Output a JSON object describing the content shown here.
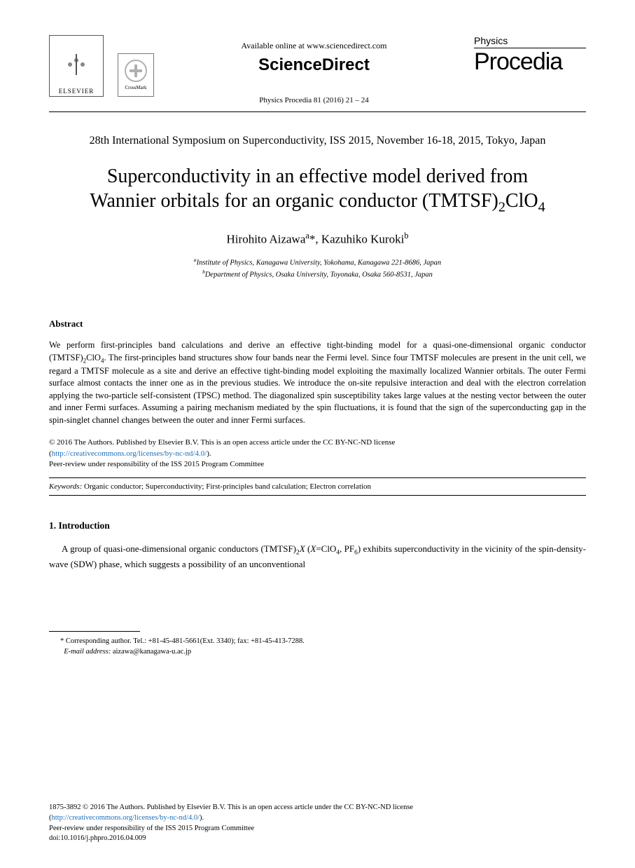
{
  "header": {
    "elsevier_label": "ELSEVIER",
    "crossmark_label": "CrossMark",
    "available_text": "Available online at www.sciencedirect.com",
    "sciencedirect": "ScienceDirect",
    "journal_ref": "Physics Procedia 81 (2016) 21 – 24",
    "physics_label": "Physics",
    "procedia_label": "Procedia"
  },
  "conference": "28th International Symposium on Superconductivity, ISS 2015, November 16-18, 2015, Tokyo, Japan",
  "title_line1": "Superconductivity in an effective model derived from",
  "title_line2_pre": "Wannier orbitals for an organic conductor (TMTSF)",
  "title_line2_sub1": "2",
  "title_line2_mid": "ClO",
  "title_line2_sub2": "4",
  "authors": {
    "a1_name": "Hirohito Aizawa",
    "a1_sup": "a",
    "a1_mark": "*",
    "sep": ", ",
    "a2_name": "Kazuhiko Kuroki",
    "a2_sup": "b"
  },
  "affiliations": {
    "a_sup": "a",
    "a_text": "Institute of Physics, Kanagawa University, Yokohama, Kanagawa 221-8686, Japan",
    "b_sup": "b",
    "b_text": "Department of Physics, Osaka University, Toyonaka, Osaka 560-8531, Japan"
  },
  "abstract": {
    "heading": "Abstract",
    "p1a": "We perform first-principles band calculations and derive an effective tight-binding model for a quasi-one-dimensional organic conductor (TMTSF)",
    "p1b": "ClO",
    "p1c": ". The first-principles band structures show four bands near the Fermi level. Since four TMTSF molecules are present in the unit cell, we regard a TMTSF molecule as a site and derive an effective tight-binding model exploiting the maximally localized Wannier orbitals. The outer Fermi surface almost contacts the inner one as in the previous studies. We introduce the on-site repulsive interaction and deal with the electron correlation applying the two-particle self-consistent (TPSC) method. The diagonalized spin susceptibility takes large values at the nesting vector between the outer and inner Fermi surfaces. Assuming a pairing mechanism mediated by the spin fluctuations, it is found that the sign of the superconducting gap in the spin-singlet channel changes between the outer and inner Fermi surfaces."
  },
  "copyright": {
    "line1": "© 2016 The Authors. Published by Elsevier B.V. This is an open access article under the CC BY-NC-ND license",
    "link": "http://creativecommons.org/licenses/by-nc-nd/4.0/",
    "line3": "Peer-review under responsibility of the ISS 2015 Program Committee"
  },
  "keywords": {
    "label": "Keywords:",
    "text": " Organic conductor; Superconductivity; First-principles band calculation; Electron correlation"
  },
  "intro": {
    "heading": "1. Introduction",
    "p_a": "A group of quasi-one-dimensional organic conductors (TMTSF)",
    "p_sub1": "2",
    "p_b": "X",
    "p_c": " (",
    "p_d": "X",
    "p_e": "=ClO",
    "p_sub2": "4",
    "p_f": ", PF",
    "p_sub3": "6",
    "p_g": ") exhibits superconductivity in the vicinity of the spin-density-wave (SDW) phase, which suggests a possibility of an unconventional"
  },
  "footnote": {
    "corr": "* Corresponding author. Tel.: +81-45-481-5661(Ext. 3340); fax: +81-45-413-7288.",
    "email_label": "E-mail address:",
    "email": " aizawa@kanagawa-u.ac.jp"
  },
  "bottom": {
    "issn": "1875-3892 © 2016 The Authors. Published by Elsevier B.V. This is an open access article under the CC BY-NC-ND license",
    "link": "http://creativecommons.org/licenses/by-nc-nd/4.0/",
    "peer": "Peer-review under responsibility of the ISS 2015 Program Committee",
    "doi": "doi:10.1016/j.phpro.2016.04.009"
  }
}
